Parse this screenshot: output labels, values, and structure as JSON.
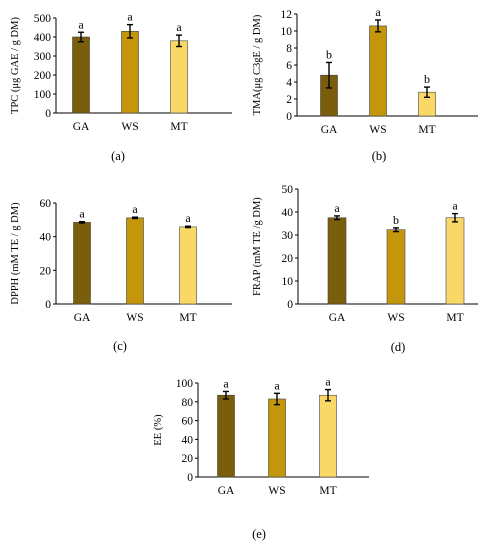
{
  "colors": [
    "#7a5e0c",
    "#c4960b",
    "#f9d868"
  ],
  "chart_data": [
    {
      "type": "bar",
      "caption": "(a)",
      "ylabel": "TPC (μg GAE / g DM)",
      "categories": [
        "GA",
        "WS",
        "MT"
      ],
      "values": [
        400,
        430,
        380
      ],
      "errors": [
        25,
        35,
        30
      ],
      "letters": [
        "a",
        "a",
        "a"
      ],
      "ylim": [
        0,
        500
      ],
      "yticks": [
        "0",
        "100",
        "200",
        "300",
        "400",
        "500"
      ],
      "grid": false
    },
    {
      "type": "bar",
      "caption": "(b)",
      "ylabel": "TMA(μg C3gE / g DM)",
      "categories": [
        "GA",
        "WS",
        "MT"
      ],
      "values": [
        4.8,
        10.6,
        2.8
      ],
      "errors": [
        1.5,
        0.7,
        0.6
      ],
      "letters": [
        "b",
        "a",
        "b"
      ],
      "ylim": [
        0,
        12
      ],
      "yticks": [
        "0",
        "2",
        "4",
        "6",
        "8",
        "10",
        "12"
      ],
      "grid": false
    },
    {
      "type": "bar",
      "caption": "(c)",
      "ylabel": "DPPH (mM TE / g DM)",
      "categories": [
        "GA",
        "WS",
        "MT"
      ],
      "values": [
        48.5,
        51.2,
        45.8
      ],
      "errors": [
        0.4,
        0.4,
        0.4
      ],
      "letters": [
        "a",
        "a",
        "a"
      ],
      "ylim": [
        0,
        60
      ],
      "yticks": [
        "0",
        "20",
        "40",
        "60"
      ],
      "grid": false
    },
    {
      "type": "bar",
      "caption": "(d)",
      "ylabel": "FRAP (mM TE /g DM)",
      "categories": [
        "GA",
        "WS",
        "MT"
      ],
      "values": [
        37.5,
        32.3,
        37.5
      ],
      "errors": [
        0.8,
        0.8,
        1.8
      ],
      "letters": [
        "a",
        "b",
        "a"
      ],
      "ylim": [
        0,
        50
      ],
      "yticks": [
        "0",
        "10",
        "20",
        "30",
        "40",
        "50"
      ],
      "grid": false
    },
    {
      "type": "bar",
      "caption": "(e)",
      "ylabel": "EE (%)",
      "categories": [
        "GA",
        "WS",
        "MT"
      ],
      "values": [
        87,
        83,
        87
      ],
      "errors": [
        4,
        6,
        6
      ],
      "letters": [
        "a",
        "a",
        "a"
      ],
      "ylim": [
        0,
        100
      ],
      "yticks": [
        "0",
        "20",
        "40",
        "60",
        "80",
        "100"
      ],
      "grid": false
    }
  ]
}
